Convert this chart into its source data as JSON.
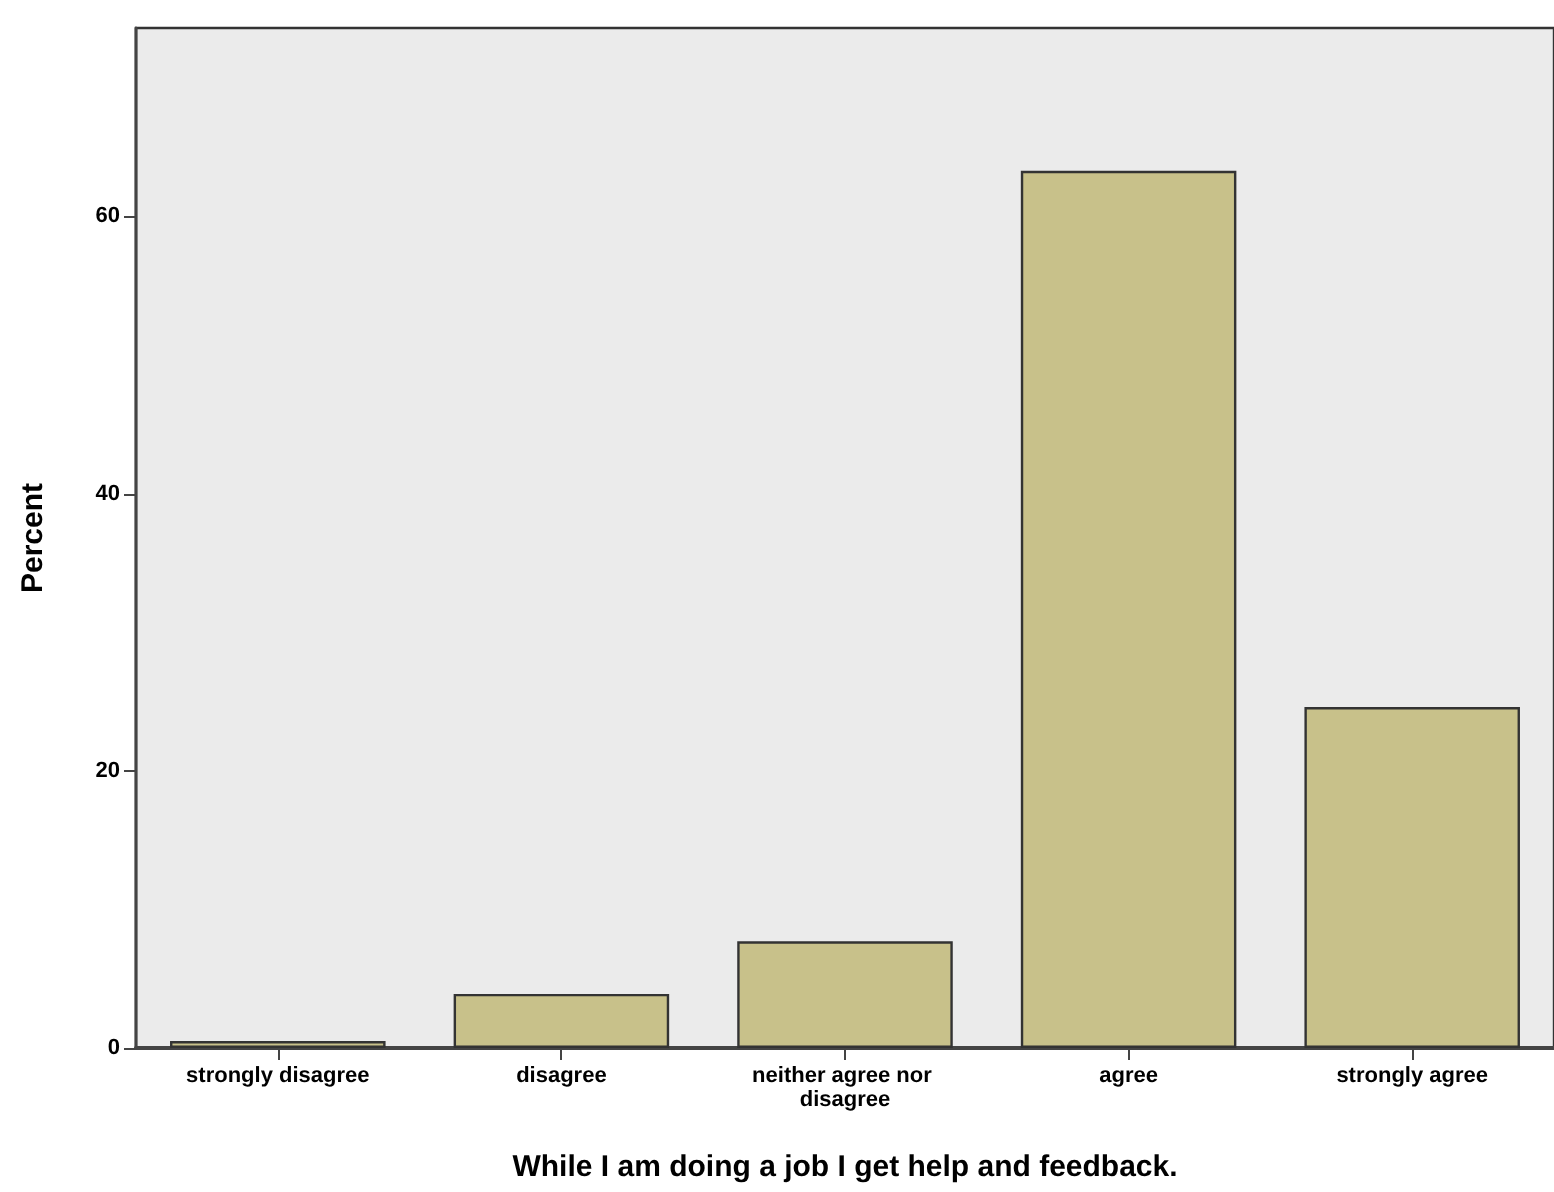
{
  "chart_data": {
    "type": "bar",
    "xlabel": "While I am doing a job I get help and feedback.",
    "ylabel": "Percent",
    "categories": [
      "strongly disagree",
      "disagree",
      "neither agree nor disagree",
      "agree",
      "strongly agree"
    ],
    "values": [
      0.5,
      3.9,
      7.7,
      63.3,
      24.6
    ],
    "color": "#c8c18a",
    "ylim": [
      0,
      73.6
    ],
    "yticks": [
      0,
      20,
      40,
      60
    ],
    "grid": false
  }
}
